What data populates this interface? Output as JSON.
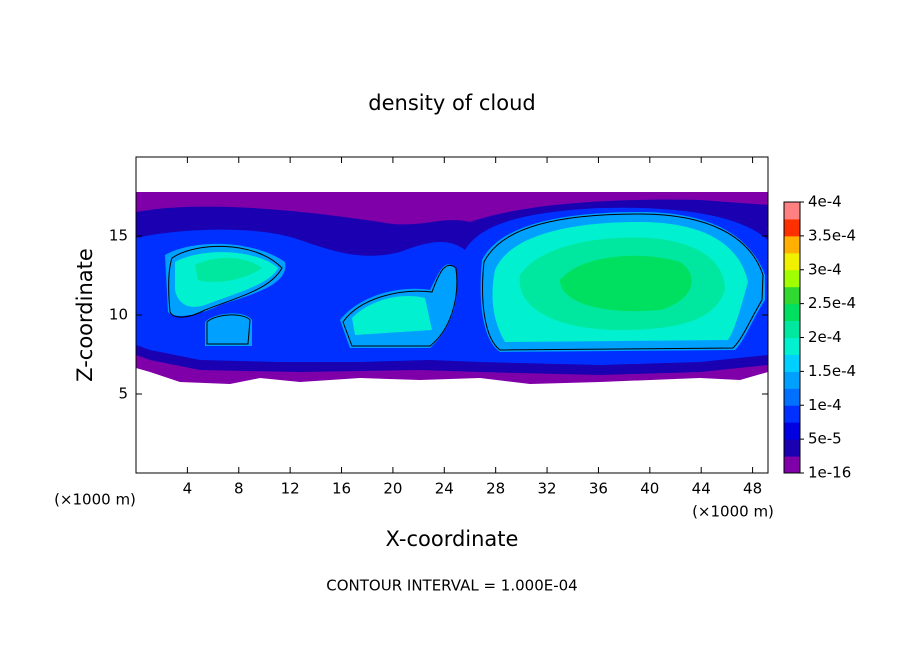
{
  "chart_data": {
    "type": "contour",
    "title": "density of cloud",
    "x_label": "X-coordinate",
    "y_label": "Z-coordinate",
    "x_unit": "(×1000 m)",
    "y_unit": "(×1000 m)",
    "footer": "CONTOUR INTERVAL = 1.000E-04",
    "xlim": [
      0,
      49.2
    ],
    "xticks": [
      4,
      8,
      12,
      16,
      20,
      24,
      28,
      32,
      36,
      40,
      44,
      48
    ],
    "ylim": [
      0,
      20
    ],
    "yticks": [
      5,
      10,
      15
    ],
    "colorbar": {
      "clim": [
        1e-16,
        0.0004
      ],
      "colors": [
        "#7f00a8",
        "#1a00b0",
        "#0000e0",
        "#0030ff",
        "#0070ff",
        "#00a0ff",
        "#00d0ff",
        "#00f0d0",
        "#00e8a0",
        "#00e060",
        "#30d830",
        "#a0ff00",
        "#f0f000",
        "#ffb000",
        "#ff3000",
        "#ff8080"
      ],
      "ticks": [
        {
          "value": 1e-16,
          "label": "1e-16"
        },
        {
          "value": 5e-05,
          "label": "5e-5"
        },
        {
          "value": 0.0001,
          "label": "1e-4"
        },
        {
          "value": 0.00015,
          "label": "1.5e-4"
        },
        {
          "value": 0.0002,
          "label": "2e-4"
        },
        {
          "value": 0.00025,
          "label": "2.5e-4"
        },
        {
          "value": 0.0003,
          "label": "3e-4"
        },
        {
          "value": 0.00035,
          "label": "3.5e-4"
        },
        {
          "value": 0.0004,
          "label": "4e-4"
        }
      ]
    }
  }
}
